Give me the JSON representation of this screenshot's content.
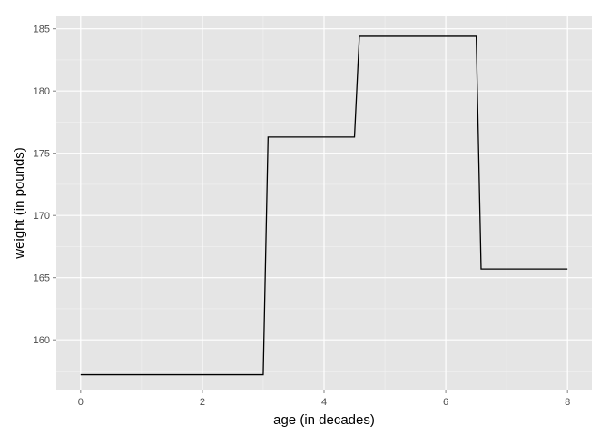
{
  "chart_data": {
    "type": "line",
    "title": "",
    "xlabel": "age (in decades)",
    "ylabel": "weight (in pounds)",
    "xlim": [
      -0.4,
      8.4
    ],
    "ylim": [
      156.0,
      186.0
    ],
    "x_ticks": [
      0,
      2,
      4,
      6,
      8
    ],
    "x_tick_labels": [
      "0",
      "2",
      "4",
      "6",
      "8"
    ],
    "y_ticks": [
      160,
      165,
      170,
      175,
      180,
      185
    ],
    "y_tick_labels": [
      "160",
      "165",
      "170",
      "175",
      "180",
      "185"
    ],
    "grid": true,
    "legend": "none",
    "series": [
      {
        "x": [
          0,
          3.0,
          3.08,
          4.5,
          4.58,
          6.5,
          6.58,
          8.0
        ],
        "y": [
          157.2,
          157.2,
          176.3,
          176.3,
          184.4,
          184.4,
          165.7,
          165.7
        ]
      }
    ]
  },
  "colors": {
    "panel_background": "#e5e5e5",
    "grid_major": "#ffffff",
    "grid_minor": "#f2f2f2",
    "line": "#000000",
    "tick_text": "#4d4d4d"
  }
}
